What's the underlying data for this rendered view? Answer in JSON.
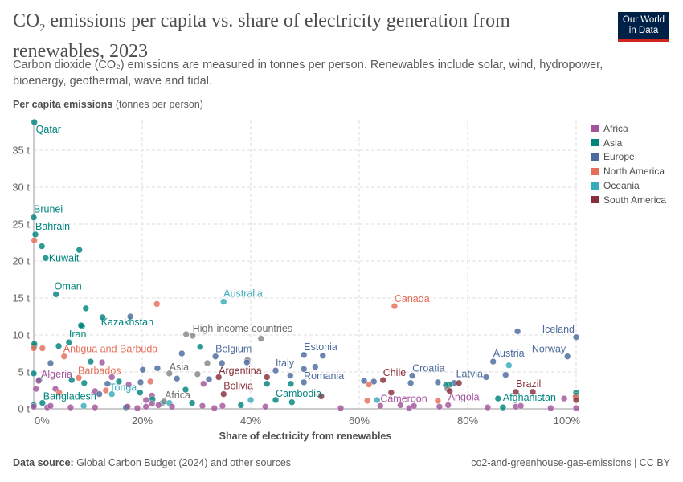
{
  "header": {
    "title_pre": "CO",
    "title_sub": "2",
    "title_post": " emissions per capita vs. share of electricity generation from renewables, 2023",
    "subtitle": "Carbon dioxide (CO₂) emissions are measured in tonnes per person. Renewables include solar, wind, hydropower, bioenergy, geothermal, wave and tidal.",
    "logo_line1": "Our World",
    "logo_line2": "in Data"
  },
  "footer": {
    "source_label": "Data source:",
    "source_text": " Global Carbon Budget (2024) and other sources",
    "right_text": "co2-and-greenhouse-gas-emissions | CC BY"
  },
  "chart_data": {
    "type": "scatter",
    "title": "CO₂ emissions per capita vs. share of electricity generation from renewables, 2023",
    "ylabel_bold": "Per capita emissions",
    "ylabel_unit": " (tonnes per person)",
    "xlabel": "Share of electricity from renewables",
    "xlim": [
      0,
      100
    ],
    "ylim": [
      0,
      39
    ],
    "x_ticks": [
      0,
      20,
      40,
      60,
      80,
      100
    ],
    "x_tick_labels": [
      "0%",
      "20%",
      "40%",
      "60%",
      "80%",
      "100%"
    ],
    "y_ticks": [
      0,
      5,
      10,
      15,
      20,
      25,
      30,
      35
    ],
    "y_tick_labels": [
      "0 t",
      "5 t",
      "10 t",
      "15 t",
      "20 t",
      "25 t",
      "30 t",
      "35 t"
    ],
    "grid": true,
    "legend_position": "right",
    "legend": [
      {
        "name": "Africa",
        "color": "#a2559c"
      },
      {
        "name": "Asia",
        "color": "#00847e"
      },
      {
        "name": "Europe",
        "color": "#4c6a9c"
      },
      {
        "name": "North America",
        "color": "#e56e5a"
      },
      {
        "name": "Oceania",
        "color": "#38aaba"
      },
      {
        "name": "South America",
        "color": "#883039"
      }
    ],
    "aggregate_color": "#858585",
    "points": [
      [
        "Asia",
        0.1,
        38.8,
        "Qatar"
      ],
      [
        "Asia",
        0,
        25.9,
        "Brunei"
      ],
      [
        "Asia",
        0.3,
        23.6,
        "Bahrain"
      ],
      [
        "North America",
        0.1,
        22.8,
        ""
      ],
      [
        "Asia",
        1.5,
        22.0,
        ""
      ],
      [
        "Asia",
        2.2,
        20.4,
        "Kuwait"
      ],
      [
        "Asia",
        8.4,
        21.5,
        ""
      ],
      [
        "Asia",
        4.1,
        15.5,
        "Oman"
      ],
      [
        "Asia",
        9.6,
        13.6,
        ""
      ],
      [
        "Asia",
        12.7,
        12.4,
        "Kazakhstan"
      ],
      [
        "North America",
        22.7,
        14.2,
        ""
      ],
      [
        "Oceania",
        35.0,
        14.5,
        "Australia"
      ],
      [
        "Europe",
        17.8,
        12.5,
        ""
      ],
      [
        "Asia",
        8.9,
        11.2,
        ""
      ],
      [
        "Asia",
        8.7,
        11.3,
        ""
      ],
      [
        "Asia",
        6.5,
        9.0,
        "Iran"
      ],
      [
        "Asia",
        0.1,
        8.5,
        ""
      ],
      [
        "Asia",
        0.1,
        8.8,
        ""
      ],
      [
        "North America",
        0,
        8.2,
        ""
      ],
      [
        "North America",
        1.6,
        8.2,
        ""
      ],
      [
        "Asia",
        4.6,
        8.5,
        ""
      ],
      [
        "North America",
        5.6,
        7.1,
        "Antigua and Barbuda"
      ],
      [
        "Europe",
        3.1,
        6.2,
        ""
      ],
      [
        "Asia",
        10.5,
        6.4,
        ""
      ],
      [
        "Africa",
        12.6,
        6.3,
        ""
      ],
      [
        "Asia",
        0,
        4.8,
        ""
      ],
      [
        "Asia",
        1.0,
        3.9,
        ""
      ],
      [
        "Africa",
        0.9,
        3.8,
        "Algeria"
      ],
      [
        "Africa",
        0.4,
        2.7,
        ""
      ],
      [
        "Africa",
        4.0,
        2.7,
        ""
      ],
      [
        "North America",
        4.7,
        2.2,
        ""
      ],
      [
        "Asia",
        7.0,
        3.9,
        ""
      ],
      [
        "North America",
        8.3,
        4.2,
        "Barbados"
      ],
      [
        "Asia",
        9.3,
        3.5,
        ""
      ],
      [
        "Africa",
        11.3,
        2.4,
        ""
      ],
      [
        "Europe",
        12.1,
        2.0,
        ""
      ],
      [
        "North America",
        13.3,
        2.5,
        ""
      ],
      [
        "Oceania",
        14.4,
        2.0,
        "Tonga"
      ],
      [
        "Europe",
        13.6,
        3.4,
        ""
      ],
      [
        "Africa",
        14.4,
        4.3,
        ""
      ],
      [
        "Asia",
        15.7,
        3.7,
        ""
      ],
      [
        "Africa",
        17.5,
        3.3,
        ""
      ],
      [
        "Asia",
        19.6,
        2.2,
        ""
      ],
      [
        "Europe",
        19.7,
        3.6,
        ""
      ],
      [
        "North America",
        21.5,
        3.7,
        ""
      ],
      [
        "Europe",
        20.1,
        5.3,
        ""
      ],
      [
        "Europe",
        22.8,
        5.5,
        ""
      ],
      [
        "Africa",
        21.8,
        1.8,
        ""
      ],
      [
        "Africa",
        20.7,
        1.2,
        ""
      ],
      [
        "Asia",
        21.9,
        1.3,
        ""
      ],
      [
        "Oceania",
        23.7,
        0.8,
        ""
      ],
      [
        "Aggregate",
        24.0,
        1.0,
        "Africa"
      ],
      [
        "Oceania",
        25.0,
        0.8,
        ""
      ],
      [
        "Europe",
        26.4,
        4.1,
        ""
      ],
      [
        "Aggregate",
        25.0,
        4.8,
        "Asia"
      ],
      [
        "Europe",
        27.3,
        7.5,
        ""
      ],
      [
        "Aggregate",
        28.1,
        10.1,
        "High-income countries"
      ],
      [
        "Aggregate",
        29.3,
        9.9,
        ""
      ],
      [
        "Asia",
        30.7,
        8.4,
        ""
      ],
      [
        "Aggregate",
        30.2,
        4.7,
        ""
      ],
      [
        "Aggregate",
        32.0,
        6.2,
        ""
      ],
      [
        "Europe",
        32.3,
        4.0,
        ""
      ],
      [
        "Europe",
        33.5,
        7.1,
        "Belgium"
      ],
      [
        "Europe",
        34.7,
        6.2,
        ""
      ],
      [
        "South America",
        34.1,
        4.3,
        "Argentina"
      ],
      [
        "Africa",
        31.3,
        3.4,
        ""
      ],
      [
        "Asia",
        28.0,
        2.6,
        ""
      ],
      [
        "Asia",
        29.2,
        0.8,
        ""
      ],
      [
        "Africa",
        31.1,
        0.4,
        ""
      ],
      [
        "Africa",
        33.3,
        0.1,
        ""
      ],
      [
        "Africa",
        34.8,
        0.4,
        ""
      ],
      [
        "South America",
        35.0,
        2.0,
        "Bolivia"
      ],
      [
        "Asia",
        38.2,
        0.5,
        ""
      ],
      [
        "Oceania",
        40.0,
        1.2,
        ""
      ],
      [
        "Africa",
        42.7,
        0.3,
        ""
      ],
      [
        "Aggregate",
        39.4,
        6.6,
        ""
      ],
      [
        "Europe",
        39.3,
        6.3,
        ""
      ],
      [
        "Aggregate",
        41.9,
        9.5,
        ""
      ],
      [
        "South America",
        43.0,
        4.3,
        ""
      ],
      [
        "Asia",
        43.0,
        3.4,
        ""
      ],
      [
        "Europe",
        44.6,
        5.2,
        "Italy"
      ],
      [
        "Europe",
        47.3,
        4.5,
        ""
      ],
      [
        "Asia",
        47.4,
        3.4,
        ""
      ],
      [
        "Europe",
        49.8,
        7.3,
        "Estonia"
      ],
      [
        "Europe",
        53.3,
        7.2,
        ""
      ],
      [
        "Europe",
        49.8,
        5.4,
        ""
      ],
      [
        "Europe",
        51.9,
        5.7,
        ""
      ],
      [
        "Europe",
        49.8,
        3.6,
        "Romania"
      ],
      [
        "Asia",
        44.6,
        1.2,
        "Cambodia"
      ],
      [
        "Asia",
        47.6,
        0.9,
        ""
      ],
      [
        "South America",
        53.0,
        1.7,
        ""
      ],
      [
        "Africa",
        56.6,
        0.1,
        ""
      ],
      [
        "Europe",
        60.9,
        3.8,
        ""
      ],
      [
        "Europe",
        62.7,
        3.7,
        ""
      ],
      [
        "North America",
        61.8,
        3.3,
        ""
      ],
      [
        "South America",
        64.4,
        3.9,
        "Chile"
      ],
      [
        "North America",
        61.5,
        1.1,
        ""
      ],
      [
        "Oceania",
        63.3,
        1.2,
        ""
      ],
      [
        "Africa",
        63.9,
        0.4,
        "Cameroon"
      ],
      [
        "North America",
        66.5,
        13.9,
        "Canada"
      ],
      [
        "Europe",
        69.8,
        4.5,
        "Croatia"
      ],
      [
        "Europe",
        69.5,
        3.5,
        ""
      ],
      [
        "Europe",
        74.5,
        3.6,
        ""
      ],
      [
        "Europe",
        77.5,
        3.5,
        ""
      ],
      [
        "South America",
        78.4,
        3.5,
        ""
      ],
      [
        "Asia",
        76.7,
        3.3,
        ""
      ],
      [
        "Asia",
        76.0,
        3.2,
        ""
      ],
      [
        "Aggregate",
        76.3,
        2.7,
        ""
      ],
      [
        "South America",
        76.7,
        2.4,
        ""
      ],
      [
        "South America",
        65.9,
        2.2,
        ""
      ],
      [
        "North America",
        74.5,
        1.1,
        ""
      ],
      [
        "Africa",
        76.4,
        0.5,
        "Angola"
      ],
      [
        "Africa",
        74.8,
        0.3,
        ""
      ],
      [
        "Africa",
        67.6,
        0.5,
        ""
      ],
      [
        "Africa",
        69.2,
        0.1,
        ""
      ],
      [
        "Africa",
        70.1,
        0.4,
        ""
      ],
      [
        "Europe",
        89.2,
        10.5,
        ""
      ],
      [
        "Europe",
        100,
        9.7,
        "Iceland"
      ],
      [
        "Europe",
        98.4,
        7.1,
        "Norway"
      ],
      [
        "Europe",
        84.7,
        6.4,
        "Austria"
      ],
      [
        "Oceania",
        87.6,
        5.9,
        ""
      ],
      [
        "Europe",
        87.0,
        4.6,
        ""
      ],
      [
        "Europe",
        83.4,
        4.3,
        "Latvia"
      ],
      [
        "Africa",
        83.7,
        0.2,
        ""
      ],
      [
        "Asia",
        85.6,
        1.4,
        ""
      ],
      [
        "Asia",
        86.5,
        0.2,
        "Afghanistan"
      ],
      [
        "South America",
        88.9,
        2.3,
        "Brazil"
      ],
      [
        "South America",
        92.0,
        2.3,
        ""
      ],
      [
        "Africa",
        88.9,
        0.3,
        ""
      ],
      [
        "Africa",
        89.8,
        0.4,
        ""
      ],
      [
        "Africa",
        95.3,
        0.1,
        ""
      ],
      [
        "Africa",
        97.8,
        1.4,
        ""
      ],
      [
        "Asia",
        100,
        2.2,
        ""
      ],
      [
        "Asia",
        100,
        1.8,
        ""
      ],
      [
        "North America",
        99.9,
        1.6,
        ""
      ],
      [
        "South America",
        100,
        1.2,
        ""
      ],
      [
        "Africa",
        100,
        0.1,
        ""
      ],
      [
        "Asia",
        0,
        0.5,
        ""
      ],
      [
        "Africa",
        0,
        0.3,
        ""
      ],
      [
        "Asia",
        1.6,
        0.8,
        "Bangladesh"
      ],
      [
        "Africa",
        2.5,
        0.2,
        ""
      ],
      [
        "Africa",
        3.1,
        0.4,
        ""
      ],
      [
        "Africa",
        6.8,
        0.2,
        ""
      ],
      [
        "Oceania",
        9.2,
        0.4,
        ""
      ],
      [
        "Africa",
        11.3,
        0.2,
        ""
      ],
      [
        "Asia",
        17.0,
        0.2,
        ""
      ],
      [
        "Africa",
        17.3,
        0.3,
        ""
      ],
      [
        "Africa",
        19.1,
        0.1,
        ""
      ],
      [
        "Africa",
        20.7,
        0.3,
        ""
      ],
      [
        "Africa",
        21.8,
        0.7,
        ""
      ],
      [
        "Africa",
        23.0,
        0.5,
        ""
      ],
      [
        "Africa",
        25.5,
        0.3,
        ""
      ]
    ]
  }
}
